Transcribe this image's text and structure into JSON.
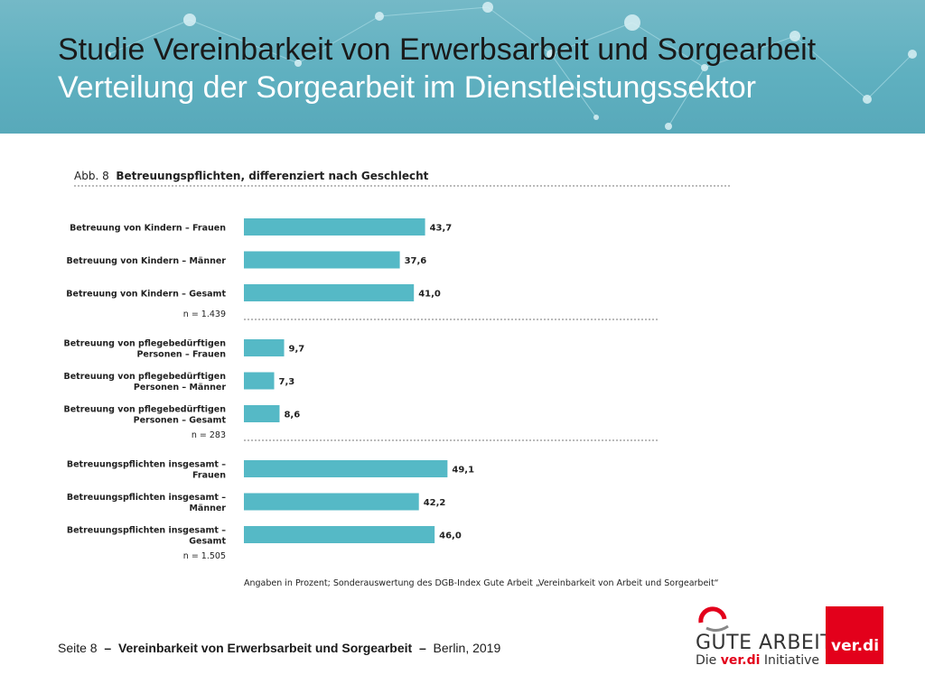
{
  "slide": {
    "title_line1": "Studie Vereinbarkeit von Erwerbsarbeit und Sorgearbeit",
    "title_line2": "Verteilung der Sorgearbeit im Dienstleistungssektor"
  },
  "figure": {
    "number": "Abb. 8",
    "caption": "Betreuungspflichten, differenziert nach Geschlecht"
  },
  "chart_data": {
    "type": "bar",
    "orientation": "horizontal",
    "bar_color": "#55b9c6",
    "groups": [
      {
        "categories": [
          [
            "Betreuung von Kindern – Frauen"
          ],
          [
            "Betreuung von Kindern – Männer"
          ],
          [
            "Betreuung von Kindern – Gesamt"
          ]
        ],
        "values": [
          43.7,
          37.6,
          41.0
        ],
        "value_labels": [
          "43,7",
          "37,6",
          "41,0"
        ],
        "n": "n = 1.439"
      },
      {
        "categories": [
          [
            "Betreuung von pflegebedürftigen",
            "Personen – Frauen"
          ],
          [
            "Betreuung von pflegebedürftigen",
            "Personen – Männer"
          ],
          [
            "Betreuung von pflegebedürftigen",
            "Personen – Gesamt"
          ]
        ],
        "values": [
          9.7,
          7.3,
          8.6
        ],
        "value_labels": [
          "9,7",
          "7,3",
          "8,6"
        ],
        "n": "n = 283"
      },
      {
        "categories": [
          [
            "Betreuungspflichten insgesamt –",
            "Frauen"
          ],
          [
            "Betreuungspflichten insgesamt –",
            "Männer"
          ],
          [
            "Betreuungspflichten insgesamt –",
            "Gesamt"
          ]
        ],
        "values": [
          49.1,
          42.2,
          46.0
        ],
        "value_labels": [
          "49,1",
          "42,2",
          "46,0"
        ],
        "n": "n = 1.505"
      }
    ],
    "note": "Angaben in Prozent; Sonderauswertung des DGB-Index Gute Arbeit „Vereinbarkeit von Arbeit und Sorgearbeit“"
  },
  "footer": {
    "page": "Seite 8",
    "dash1": "–",
    "study": "Vereinbarkeit von Erwerbsarbeit und Sorgearbeit",
    "dash2": "–",
    "place_year": "Berlin, 2019"
  },
  "logos": {
    "gute_arbeit": "GUTE ARBEIT",
    "sub_prefix": "Die",
    "sub_brand": "ver.di",
    "sub_suffix": "Initiative",
    "verdi": "ver.di"
  }
}
